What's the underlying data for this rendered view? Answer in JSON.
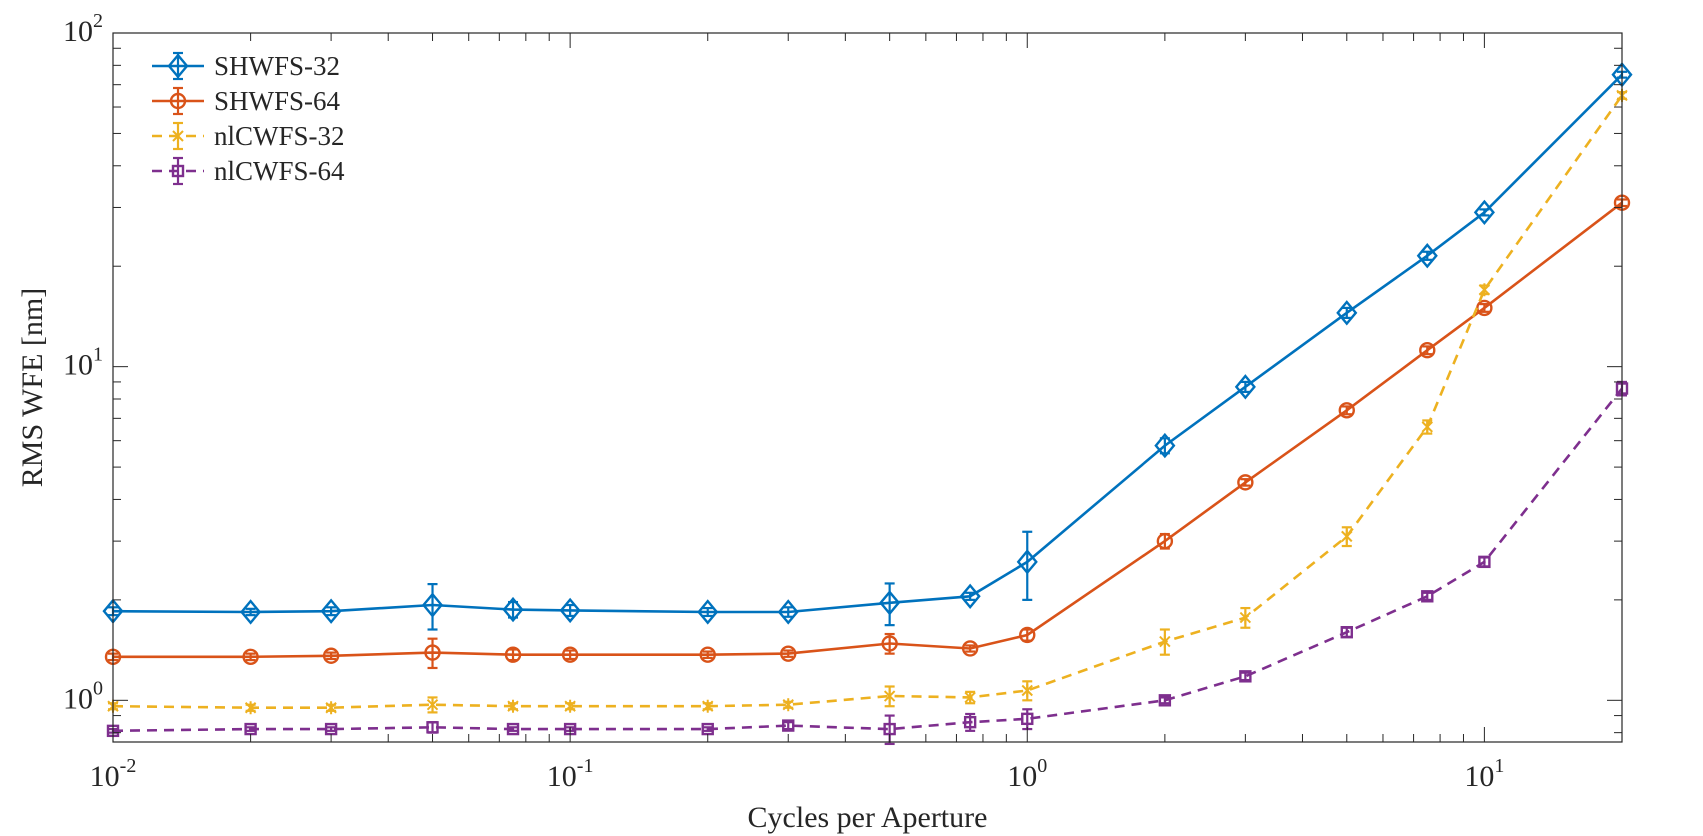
{
  "chart_data": {
    "type": "line",
    "title": "",
    "xlabel": "Cycles per Aperture",
    "ylabel": "RMS WFE [nm]",
    "xscale": "log",
    "yscale": "log",
    "xlim": [
      0.01,
      20
    ],
    "ylim": [
      0.75,
      100
    ],
    "grid": false,
    "legend_position": "top-left",
    "x_tick_labels": [
      {
        "base": "10",
        "exp": "-2",
        "value": 0.01
      },
      {
        "base": "10",
        "exp": "-1",
        "value": 0.1
      },
      {
        "base": "10",
        "exp": "0",
        "value": 1
      },
      {
        "base": "10",
        "exp": "1",
        "value": 10
      }
    ],
    "y_tick_labels": [
      {
        "base": "10",
        "exp": "0",
        "value": 1
      },
      {
        "base": "10",
        "exp": "1",
        "value": 10
      },
      {
        "base": "10",
        "exp": "2",
        "value": 100
      }
    ],
    "x": [
      0.01,
      0.02,
      0.03,
      0.05,
      0.075,
      0.1,
      0.2,
      0.3,
      0.5,
      0.75,
      1,
      2,
      3,
      5,
      7.5,
      10,
      20
    ],
    "series": [
      {
        "name": "SHWFS-32",
        "color": "#0072BD",
        "line_style": "solid",
        "marker": "diamond",
        "values": [
          1.85,
          1.84,
          1.85,
          1.93,
          1.87,
          1.86,
          1.84,
          1.84,
          1.96,
          2.05,
          2.6,
          5.8,
          8.7,
          14.5,
          21.5,
          29,
          75
        ],
        "errors": [
          0.05,
          0.04,
          0.05,
          0.3,
          0.1,
          0.07,
          0.05,
          0.06,
          0.28,
          0.05,
          0.6,
          0.3,
          0.3,
          0.5,
          0.6,
          0.6,
          1.5
        ]
      },
      {
        "name": "SHWFS-64",
        "color": "#D95319",
        "line_style": "solid",
        "marker": "circle",
        "values": [
          1.35,
          1.35,
          1.36,
          1.39,
          1.37,
          1.37,
          1.37,
          1.38,
          1.48,
          1.43,
          1.57,
          3.0,
          4.5,
          7.4,
          11.2,
          15,
          31
        ],
        "errors": [
          0.03,
          0.03,
          0.03,
          0.14,
          0.05,
          0.04,
          0.03,
          0.03,
          0.1,
          0.03,
          0.06,
          0.15,
          0.1,
          0.2,
          0.3,
          0.4,
          0.7
        ]
      },
      {
        "name": "nlCWFS-32",
        "color": "#EDB120",
        "line_style": "dashed",
        "marker": "star",
        "values": [
          0.96,
          0.95,
          0.95,
          0.97,
          0.96,
          0.96,
          0.96,
          0.97,
          1.03,
          1.02,
          1.07,
          1.5,
          1.77,
          3.1,
          6.6,
          17,
          65
        ],
        "errors": [
          0.02,
          0.02,
          0.02,
          0.05,
          0.02,
          0.02,
          0.02,
          0.02,
          0.07,
          0.04,
          0.07,
          0.13,
          0.12,
          0.2,
          0.3,
          0.5,
          1.5
        ]
      },
      {
        "name": "nlCWFS-64",
        "color": "#7E2F8E",
        "line_style": "dashed",
        "marker": "square",
        "values": [
          0.81,
          0.82,
          0.82,
          0.83,
          0.82,
          0.82,
          0.82,
          0.84,
          0.82,
          0.86,
          0.88,
          1.0,
          1.18,
          1.6,
          2.05,
          2.6,
          8.6
        ],
        "errors": [
          0.01,
          0.01,
          0.01,
          0.03,
          0.01,
          0.01,
          0.01,
          0.02,
          0.08,
          0.05,
          0.06,
          0.02,
          0.03,
          0.05,
          0.05,
          0.08,
          0.4
        ]
      }
    ]
  }
}
